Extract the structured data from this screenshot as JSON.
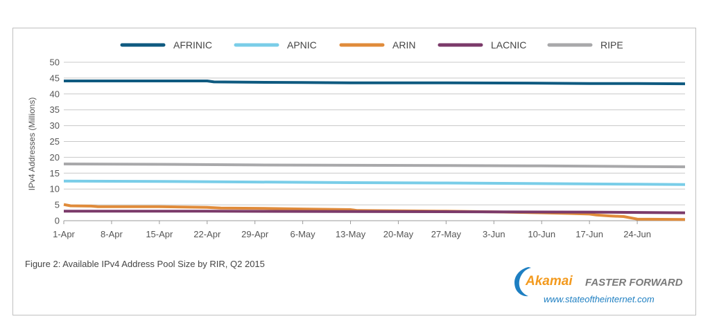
{
  "chart_data": {
    "type": "line",
    "ylabel": "IPv4 Addresses (Millions)",
    "xlabel": "",
    "ylim": [
      0,
      50
    ],
    "yticks": [
      0,
      5,
      10,
      15,
      20,
      25,
      30,
      35,
      40,
      45,
      50
    ],
    "x_tick_labels": [
      "1-Apr",
      "8-Apr",
      "15-Apr",
      "22-Apr",
      "29-Apr",
      "6-May",
      "13-May",
      "20-May",
      "27-May",
      "3-Jun",
      "10-Jun",
      "17-Jun",
      "24-Jun"
    ],
    "x_tick_days": [
      0,
      7,
      14,
      21,
      28,
      35,
      42,
      49,
      56,
      63,
      70,
      77,
      84
    ],
    "x_range_days": [
      0,
      91
    ],
    "grid": "horizontal",
    "legend_position": "top",
    "series": [
      {
        "name": "AFRINIC",
        "color": "#0f5a80",
        "points": [
          [
            0,
            44.1
          ],
          [
            21,
            44.1
          ],
          [
            22,
            43.8
          ],
          [
            28,
            43.7
          ],
          [
            35,
            43.6
          ],
          [
            42,
            43.5
          ],
          [
            56,
            43.5
          ],
          [
            70,
            43.4
          ],
          [
            77,
            43.3
          ],
          [
            84,
            43.3
          ],
          [
            91,
            43.2
          ]
        ]
      },
      {
        "name": "APNIC",
        "color": "#79cde8",
        "points": [
          [
            0,
            12.5
          ],
          [
            14,
            12.4
          ],
          [
            28,
            12.2
          ],
          [
            42,
            12.0
          ],
          [
            56,
            11.9
          ],
          [
            70,
            11.7
          ],
          [
            84,
            11.5
          ],
          [
            91,
            11.4
          ]
        ]
      },
      {
        "name": "ARIN",
        "color": "#e08b3a",
        "points": [
          [
            0,
            5.1
          ],
          [
            1,
            4.7
          ],
          [
            4,
            4.6
          ],
          [
            5,
            4.4
          ],
          [
            14,
            4.4
          ],
          [
            21,
            4.2
          ],
          [
            23,
            4.0
          ],
          [
            28,
            3.9
          ],
          [
            35,
            3.7
          ],
          [
            42,
            3.5
          ],
          [
            43,
            3.2
          ],
          [
            56,
            3.0
          ],
          [
            63,
            2.8
          ],
          [
            70,
            2.5
          ],
          [
            74,
            2.3
          ],
          [
            77,
            2.1
          ],
          [
            78,
            1.8
          ],
          [
            80,
            1.5
          ],
          [
            82,
            1.3
          ],
          [
            84,
            0.5
          ],
          [
            91,
            0.4
          ]
        ]
      },
      {
        "name": "LACNIC",
        "color": "#7b3a6a",
        "points": [
          [
            0,
            3.0
          ],
          [
            21,
            3.0
          ],
          [
            42,
            2.9
          ],
          [
            63,
            2.8
          ],
          [
            77,
            2.7
          ],
          [
            91,
            2.5
          ]
        ]
      },
      {
        "name": "RIPE",
        "color": "#a8a8aa",
        "points": [
          [
            0,
            17.9
          ],
          [
            14,
            17.8
          ],
          [
            28,
            17.6
          ],
          [
            42,
            17.5
          ],
          [
            56,
            17.4
          ],
          [
            70,
            17.3
          ],
          [
            84,
            17.1
          ],
          [
            91,
            17.0
          ]
        ]
      }
    ]
  },
  "caption": "Figure 2: Available IPv4 Address Pool Size by RIR, Q2 2015",
  "logo": {
    "brand": "Akamai",
    "tagline": "FASTER FORWARD",
    "url": "www.stateoftheinternet.com"
  }
}
